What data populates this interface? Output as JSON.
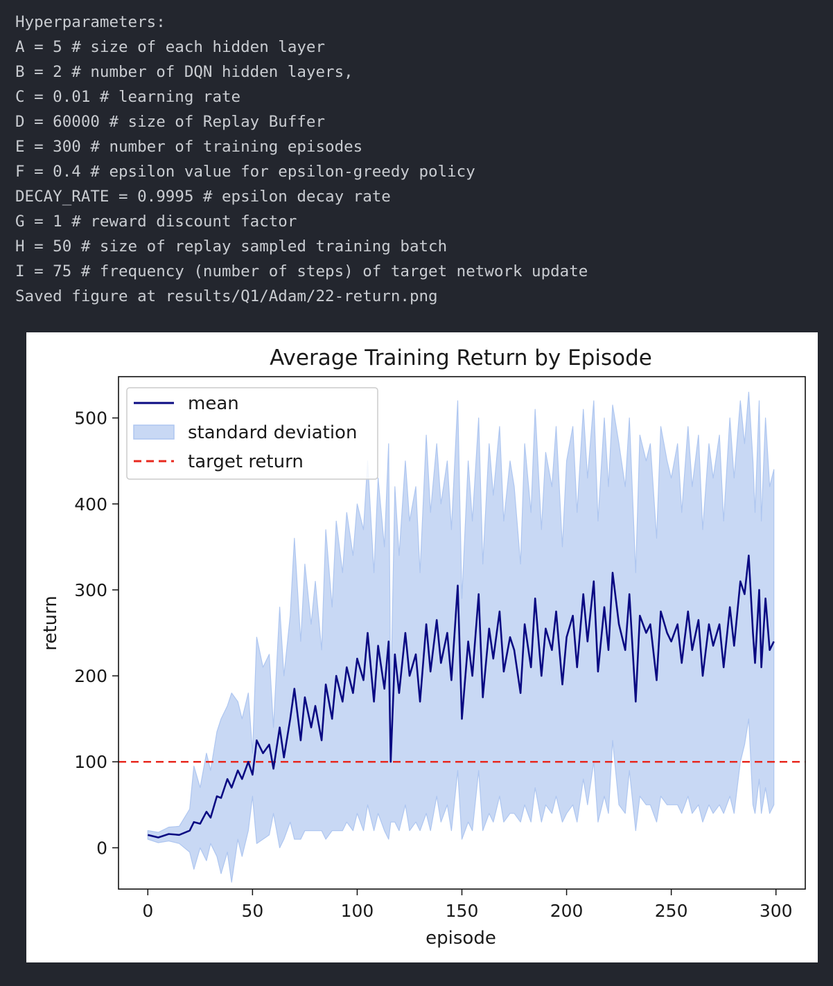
{
  "console": {
    "lines": [
      "Hyperparameters:",
      "A = 5 # size of each hidden layer",
      "B = 2 # number of DQN hidden layers,",
      "C = 0.01 # learning rate",
      "D = 60000 # size of Replay Buffer",
      "E = 300 # number of training episodes",
      "F = 0.4 # epsilon value for epsilon-greedy policy",
      "DECAY_RATE = 0.9995 # epsilon decay rate",
      "G = 1 # reward discount factor",
      "H = 50 # size of replay sampled training batch",
      "I = 75 # frequency (number of steps) of target network update",
      "Saved figure at results/Q1/Adam/22-return.png"
    ]
  },
  "chart_data": {
    "type": "line",
    "title": "Average Training Return by Episode",
    "xlabel": "episode",
    "ylabel": "return",
    "xlim": [
      -14,
      314
    ],
    "ylim": [
      -48,
      548
    ],
    "xticks": [
      0,
      50,
      100,
      150,
      200,
      250,
      300
    ],
    "yticks": [
      0,
      100,
      200,
      300,
      400,
      500
    ],
    "grid": false,
    "legend": {
      "placement": "top-left",
      "entries": [
        "mean",
        "standard deviation",
        "target return"
      ]
    },
    "target_return": 100,
    "colors": {
      "mean": "#0a0a82",
      "std": "#c8d8f4",
      "std_edge": "#aec6f0",
      "target": "#e8281e"
    },
    "series": [
      {
        "name": "mean",
        "x": [
          0,
          5,
          10,
          15,
          20,
          22,
          25,
          28,
          30,
          33,
          35,
          38,
          40,
          43,
          45,
          48,
          50,
          52,
          55,
          58,
          60,
          63,
          65,
          68,
          70,
          73,
          75,
          78,
          80,
          83,
          85,
          88,
          90,
          93,
          95,
          98,
          100,
          103,
          105,
          108,
          110,
          113,
          115,
          116,
          118,
          120,
          123,
          125,
          128,
          130,
          133,
          135,
          138,
          140,
          143,
          145,
          148,
          150,
          153,
          155,
          158,
          160,
          163,
          165,
          168,
          170,
          173,
          175,
          178,
          180,
          183,
          185,
          188,
          190,
          193,
          195,
          198,
          200,
          203,
          205,
          208,
          210,
          213,
          215,
          218,
          220,
          222,
          225,
          228,
          230,
          233,
          235,
          238,
          240,
          243,
          245,
          248,
          250,
          253,
          255,
          258,
          260,
          263,
          265,
          268,
          270,
          273,
          275,
          278,
          280,
          283,
          285,
          287,
          289,
          290,
          292,
          293,
          295,
          297,
          299
        ],
        "values": [
          15,
          12,
          16,
          15,
          20,
          30,
          28,
          42,
          35,
          60,
          58,
          80,
          70,
          90,
          80,
          100,
          85,
          125,
          110,
          120,
          92,
          140,
          105,
          150,
          185,
          125,
          175,
          140,
          165,
          125,
          190,
          150,
          200,
          170,
          210,
          180,
          220,
          195,
          250,
          170,
          235,
          185,
          240,
          100,
          225,
          180,
          250,
          200,
          225,
          170,
          260,
          205,
          265,
          215,
          250,
          195,
          305,
          150,
          240,
          200,
          295,
          175,
          255,
          220,
          275,
          205,
          245,
          230,
          180,
          260,
          210,
          290,
          200,
          255,
          230,
          275,
          190,
          245,
          270,
          210,
          295,
          240,
          310,
          205,
          280,
          230,
          320,
          260,
          230,
          295,
          170,
          270,
          250,
          260,
          195,
          275,
          250,
          240,
          260,
          215,
          275,
          230,
          265,
          200,
          260,
          235,
          260,
          210,
          280,
          235,
          310,
          295,
          340,
          250,
          215,
          300,
          210,
          290,
          230,
          240
        ]
      }
    ],
    "std_band": {
      "x": [
        0,
        5,
        10,
        15,
        20,
        22,
        25,
        28,
        30,
        33,
        35,
        38,
        40,
        43,
        45,
        48,
        50,
        52,
        55,
        58,
        60,
        63,
        65,
        68,
        70,
        73,
        75,
        78,
        80,
        83,
        85,
        88,
        90,
        93,
        95,
        98,
        100,
        103,
        105,
        108,
        110,
        113,
        115,
        116,
        118,
        120,
        123,
        125,
        128,
        130,
        133,
        135,
        138,
        140,
        143,
        145,
        148,
        150,
        153,
        155,
        158,
        160,
        163,
        165,
        168,
        170,
        173,
        175,
        178,
        180,
        183,
        185,
        188,
        190,
        193,
        195,
        198,
        200,
        203,
        205,
        208,
        210,
        213,
        215,
        218,
        220,
        222,
        225,
        228,
        230,
        233,
        235,
        238,
        240,
        243,
        245,
        248,
        250,
        253,
        255,
        258,
        260,
        263,
        265,
        268,
        270,
        273,
        275,
        278,
        280,
        283,
        285,
        287,
        289,
        290,
        292,
        293,
        295,
        297,
        299
      ],
      "upper": [
        20,
        18,
        24,
        25,
        45,
        95,
        70,
        110,
        90,
        135,
        150,
        165,
        180,
        170,
        150,
        180,
        110,
        245,
        210,
        225,
        140,
        280,
        200,
        270,
        360,
        240,
        330,
        260,
        310,
        230,
        370,
        280,
        380,
        320,
        390,
        340,
        400,
        370,
        450,
        320,
        430,
        350,
        470,
        170,
        420,
        340,
        450,
        380,
        420,
        320,
        480,
        390,
        470,
        400,
        450,
        370,
        520,
        290,
        450,
        380,
        500,
        330,
        470,
        410,
        490,
        380,
        450,
        420,
        330,
        470,
        390,
        510,
        370,
        460,
        420,
        490,
        350,
        450,
        490,
        390,
        510,
        430,
        520,
        380,
        500,
        420,
        515,
        470,
        420,
        500,
        320,
        480,
        450,
        470,
        360,
        490,
        450,
        430,
        470,
        390,
        490,
        420,
        480,
        370,
        470,
        430,
        480,
        380,
        500,
        430,
        520,
        470,
        530,
        450,
        390,
        520,
        380,
        500,
        420,
        440
      ],
      "lower": [
        10,
        6,
        8,
        5,
        -5,
        -25,
        0,
        -15,
        5,
        -10,
        -30,
        -5,
        -40,
        10,
        -10,
        20,
        60,
        5,
        10,
        15,
        40,
        0,
        10,
        30,
        10,
        10,
        20,
        20,
        20,
        20,
        10,
        20,
        20,
        20,
        30,
        20,
        40,
        20,
        50,
        20,
        40,
        20,
        10,
        30,
        30,
        20,
        50,
        20,
        30,
        20,
        40,
        20,
        60,
        30,
        50,
        20,
        90,
        10,
        30,
        20,
        90,
        20,
        40,
        30,
        60,
        30,
        40,
        40,
        30,
        50,
        30,
        70,
        30,
        50,
        40,
        60,
        30,
        40,
        50,
        30,
        80,
        50,
        100,
        30,
        60,
        40,
        125,
        50,
        40,
        90,
        20,
        60,
        50,
        50,
        30,
        60,
        50,
        50,
        50,
        40,
        60,
        40,
        50,
        30,
        50,
        40,
        50,
        40,
        60,
        40,
        100,
        120,
        150,
        50,
        40,
        80,
        40,
        70,
        40,
        50
      ]
    }
  }
}
